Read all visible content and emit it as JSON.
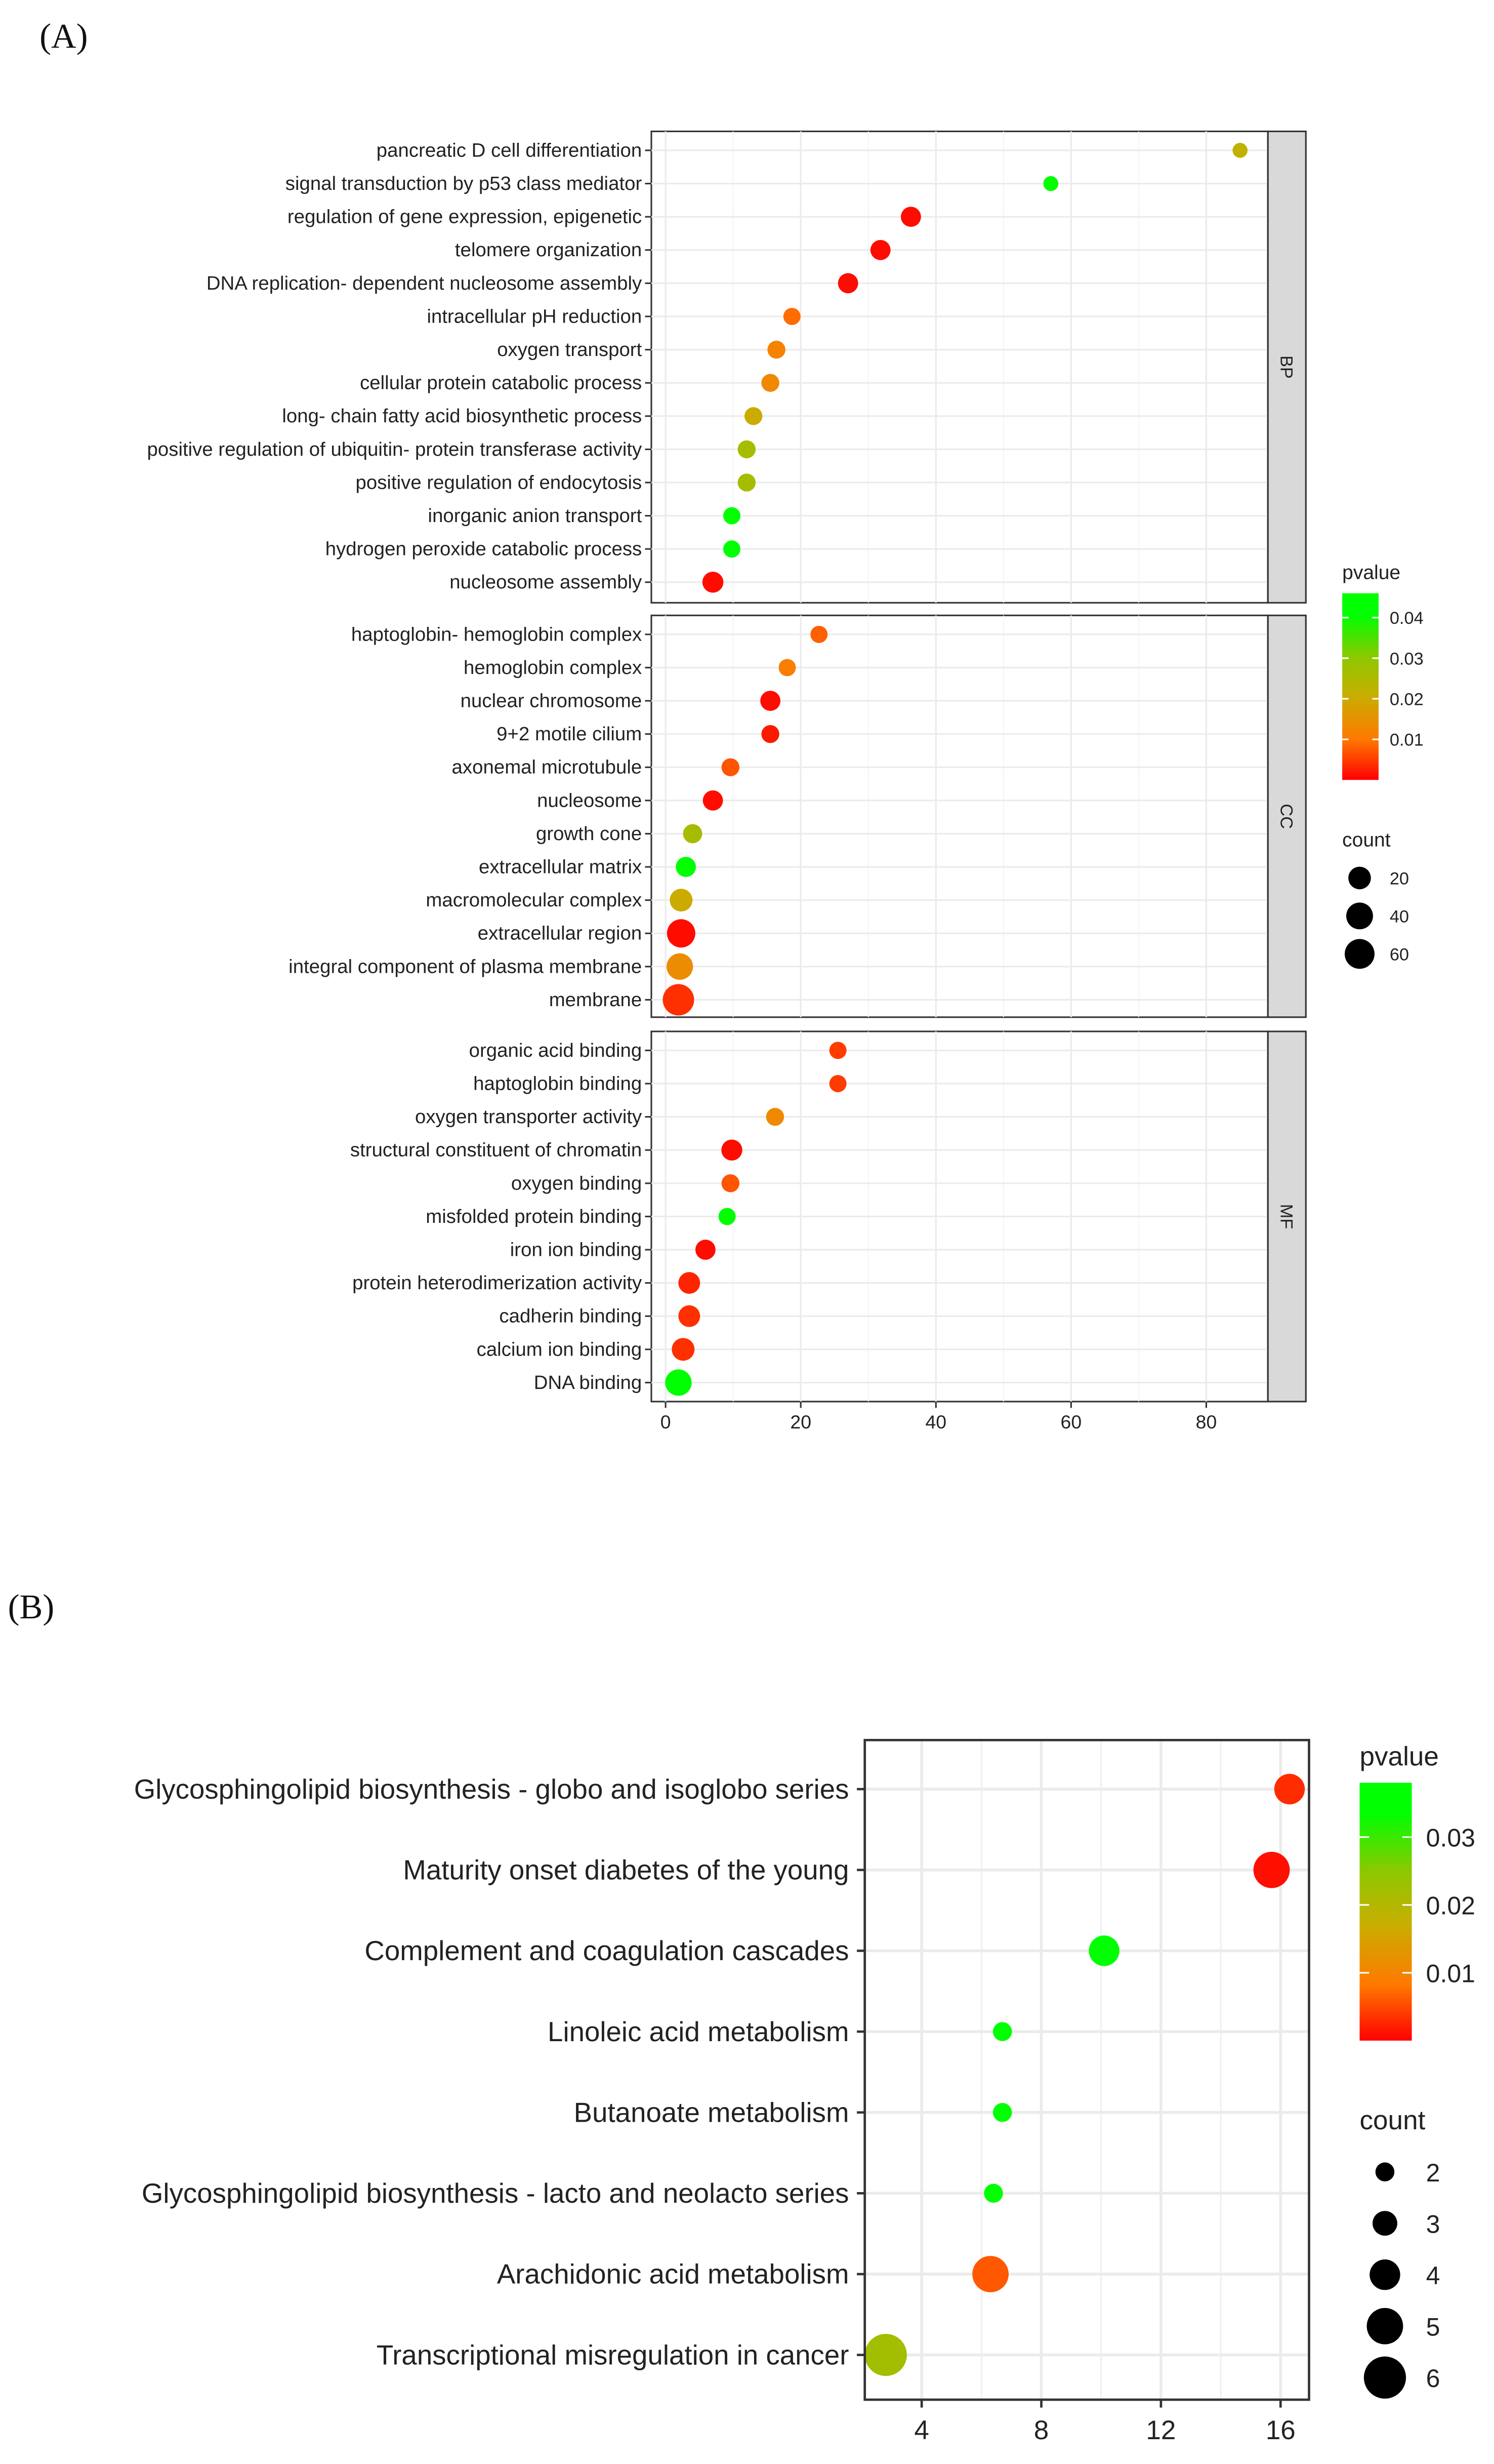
{
  "chart_data": [
    {
      "panel_label": "(A)",
      "type": "scatter",
      "xlim": [
        -2.1,
        89.2
      ],
      "x_ticks": [
        0,
        20,
        40,
        60,
        80
      ],
      "x_tick_labels": [
        "0",
        "20",
        "40",
        "60",
        "80"
      ],
      "grid": true,
      "facets": [
        {
          "name": "BP",
          "terms": [
            {
              "label": "pancreatic D cell differentiation",
              "x": 85,
              "count": 1,
              "pvalue": 0.022
            },
            {
              "label": "signal transduction by p53 class mediator",
              "x": 57,
              "count": 1,
              "pvalue": 0.04
            },
            {
              "label": "regulation of gene expression, epigenetic",
              "x": 36.3,
              "count": 8,
              "pvalue": 0.001
            },
            {
              "label": "telomere organization",
              "x": 31.8,
              "count": 8,
              "pvalue": 0.001
            },
            {
              "label": "DNA replication- dependent nucleosome assembly",
              "x": 27,
              "count": 8,
              "pvalue": 0.001
            },
            {
              "label": "intracellular pH reduction",
              "x": 18.7,
              "count": 3,
              "pvalue": 0.009
            },
            {
              "label": "oxygen transport",
              "x": 16.4,
              "count": 4,
              "pvalue": 0.012
            },
            {
              "label": "cellular protein catabolic process",
              "x": 15.5,
              "count": 4,
              "pvalue": 0.013
            },
            {
              "label": "long- chain fatty acid biosynthetic process",
              "x": 13,
              "count": 4,
              "pvalue": 0.02
            },
            {
              "label": "positive regulation of ubiquitin- protein transferase activity",
              "x": 12,
              "count": 4,
              "pvalue": 0.026
            },
            {
              "label": "positive regulation of endocytosis",
              "x": 12,
              "count": 4,
              "pvalue": 0.026
            },
            {
              "label": "inorganic anion transport",
              "x": 9.8,
              "count": 3,
              "pvalue": 0.044
            },
            {
              "label": "hydrogen peroxide catabolic process",
              "x": 9.8,
              "count": 3,
              "pvalue": 0.044
            },
            {
              "label": "nucleosome assembly",
              "x": 7,
              "count": 10,
              "pvalue": 0.001
            }
          ]
        },
        {
          "name": "CC",
          "terms": [
            {
              "label": "haptoglobin- hemoglobin complex",
              "x": 22.7,
              "count": 3,
              "pvalue": 0.008
            },
            {
              "label": "hemoglobin complex",
              "x": 18,
              "count": 3,
              "pvalue": 0.011
            },
            {
              "label": "nuclear chromosome",
              "x": 15.5,
              "count": 8,
              "pvalue": 0.001
            },
            {
              "label": "9+2 motile cilium",
              "x": 15.5,
              "count": 4,
              "pvalue": 0.002
            },
            {
              "label": "axonemal microtubule",
              "x": 9.6,
              "count": 4,
              "pvalue": 0.007
            },
            {
              "label": "nucleosome",
              "x": 7,
              "count": 8,
              "pvalue": 0.001
            },
            {
              "label": "growth cone",
              "x": 4,
              "count": 6,
              "pvalue": 0.026
            },
            {
              "label": "extracellular matrix",
              "x": 3,
              "count": 8,
              "pvalue": 0.042
            },
            {
              "label": "macromolecular complex",
              "x": 2.3,
              "count": 15,
              "pvalue": 0.02
            },
            {
              "label": "extracellular region",
              "x": 2.3,
              "count": 40,
              "pvalue": 0.001
            },
            {
              "label": "integral component of plasma membrane",
              "x": 2.1,
              "count": 30,
              "pvalue": 0.014
            },
            {
              "label": "membrane",
              "x": 1.9,
              "count": 60,
              "pvalue": 0.004
            }
          ]
        },
        {
          "name": "MF",
          "terms": [
            {
              "label": "organic acid binding",
              "x": 25.5,
              "count": 3,
              "pvalue": 0.005
            },
            {
              "label": "haptoglobin binding",
              "x": 25.5,
              "count": 3,
              "pvalue": 0.005
            },
            {
              "label": "oxygen transporter activity",
              "x": 16.2,
              "count": 4,
              "pvalue": 0.013
            },
            {
              "label": "structural constituent of chromatin",
              "x": 9.8,
              "count": 10,
              "pvalue": 0.001
            },
            {
              "label": "oxygen binding",
              "x": 9.6,
              "count": 4,
              "pvalue": 0.007
            },
            {
              "label": "misfolded protein binding",
              "x": 9.1,
              "count": 3,
              "pvalue": 0.045
            },
            {
              "label": "iron ion binding",
              "x": 5.9,
              "count": 8,
              "pvalue": 0.001
            },
            {
              "label": "protein heterodimerization activity",
              "x": 3.5,
              "count": 12,
              "pvalue": 0.003
            },
            {
              "label": "cadherin binding",
              "x": 3.5,
              "count": 12,
              "pvalue": 0.004
            },
            {
              "label": "calcium ion binding",
              "x": 2.6,
              "count": 15,
              "pvalue": 0.004
            },
            {
              "label": "DNA binding",
              "x": 1.9,
              "count": 30,
              "pvalue": 0.046
            }
          ]
        }
      ],
      "legend": {
        "placement": "right",
        "pvalue_title": "pvalue",
        "pvalue_range": [
          0,
          0.046
        ],
        "pvalue_ticks": [
          0.04,
          0.03,
          0.02,
          0.01
        ],
        "pvalue_tick_labels": [
          "0.04",
          "0.03",
          "0.02",
          "0.01"
        ],
        "count_title": "count",
        "count_values": [
          20,
          40,
          60
        ],
        "count_labels": [
          "20",
          "40",
          "60"
        ]
      }
    },
    {
      "panel_label": "(B)",
      "type": "scatter",
      "xlim": [
        2.1,
        16.9
      ],
      "x_ticks": [
        4,
        8,
        12,
        16
      ],
      "x_tick_labels": [
        "4",
        "8",
        "12",
        "16"
      ],
      "grid": true,
      "terms": [
        {
          "label": "Glycosphingolipid biosynthesis -  globo and isoglobo series",
          "x": 16.3,
          "count": 4,
          "pvalue": 0.003
        },
        {
          "label": "Maturity onset diabetes of the young",
          "x": 15.7,
          "count": 5,
          "pvalue": 0.001
        },
        {
          "label": "Complement and coagulation cascades",
          "x": 10.1,
          "count": 4,
          "pvalue": 0.036
        },
        {
          "label": "Linoleic acid metabolism",
          "x": 6.7,
          "count": 2,
          "pvalue": 0.037
        },
        {
          "label": "Butanoate metabolism",
          "x": 6.7,
          "count": 2,
          "pvalue": 0.037
        },
        {
          "label": "Glycosphingolipid biosynthesis -  lacto and neolacto series",
          "x": 6.4,
          "count": 2,
          "pvalue": 0.037
        },
        {
          "label": "Arachidonic acid metabolism",
          "x": 6.3,
          "count": 5,
          "pvalue": 0.006
        },
        {
          "label": "Transcriptional misregulation in cancer",
          "x": 2.8,
          "count": 6,
          "pvalue": 0.022
        }
      ],
      "legend": {
        "placement": "right",
        "pvalue_title": "pvalue",
        "pvalue_range": [
          0,
          0.038
        ],
        "pvalue_ticks": [
          0.03,
          0.02,
          0.01
        ],
        "pvalue_tick_labels": [
          "0.03",
          "0.02",
          "0.01"
        ],
        "count_title": "count",
        "count_values": [
          2,
          3,
          4,
          5,
          6
        ],
        "count_labels": [
          "2",
          "3",
          "4",
          "5",
          "6"
        ]
      }
    }
  ],
  "colors": {
    "low": "#ff0000",
    "mid_low": "#ff7a00",
    "mid": "#c8ae00",
    "mid_high": "#8cc800",
    "high": "#00ff00",
    "strip": "#d9d9d9",
    "grid": "#ebebeb"
  }
}
